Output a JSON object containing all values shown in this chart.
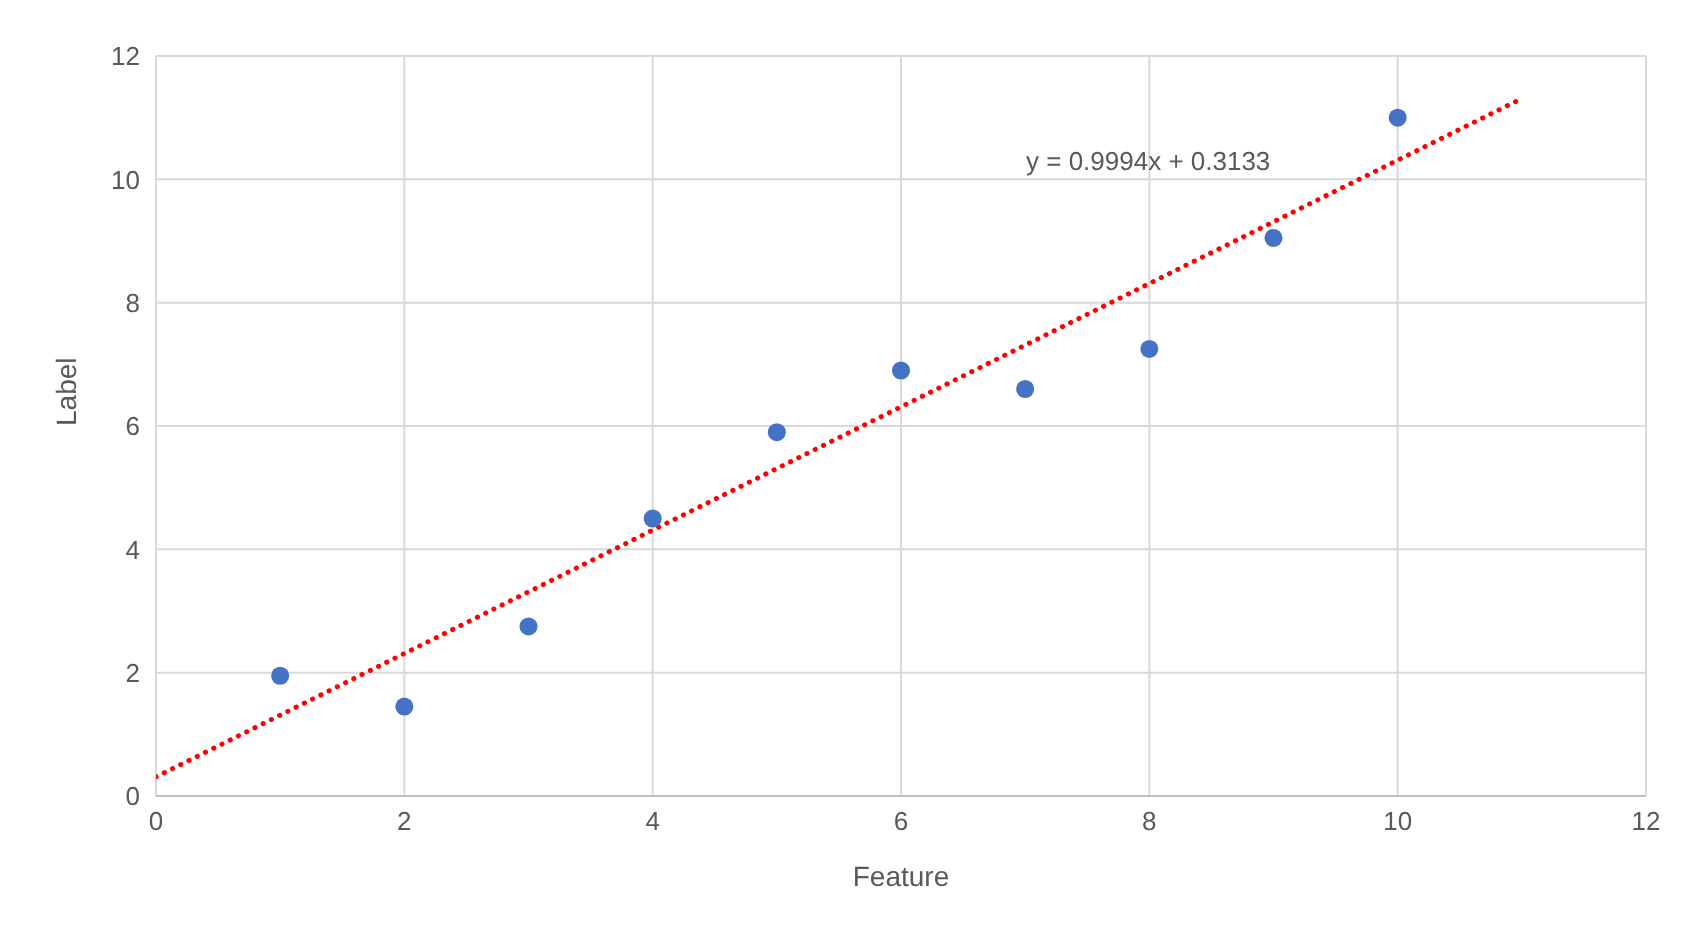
{
  "chart_data": {
    "type": "scatter",
    "xlabel": "Feature",
    "ylabel": "Label",
    "xlim": [
      0,
      12
    ],
    "xticks": [
      0,
      2,
      4,
      6,
      8,
      10,
      12
    ],
    "ylim": [
      0,
      12
    ],
    "yticks": [
      0,
      2,
      4,
      6,
      8,
      10,
      12
    ],
    "grid": true,
    "legend": false,
    "series": [
      {
        "color": "#4472c4",
        "marker": "circle",
        "x": [
          1,
          2,
          3,
          4,
          5,
          6,
          7,
          8,
          9,
          10
        ],
        "values": [
          1.95,
          1.45,
          2.75,
          4.5,
          5.9,
          6.9,
          6.6,
          7.25,
          9.05,
          11.0
        ]
      },
      {
        "type": "line",
        "color": "#ff0000",
        "line_style": "dotted",
        "marker": "none",
        "x": [
          0,
          11
        ],
        "values": [
          0.31,
          11.31
        ]
      }
    ],
    "annotations": [
      "y = 0.9994x + 0.3133"
    ]
  }
}
